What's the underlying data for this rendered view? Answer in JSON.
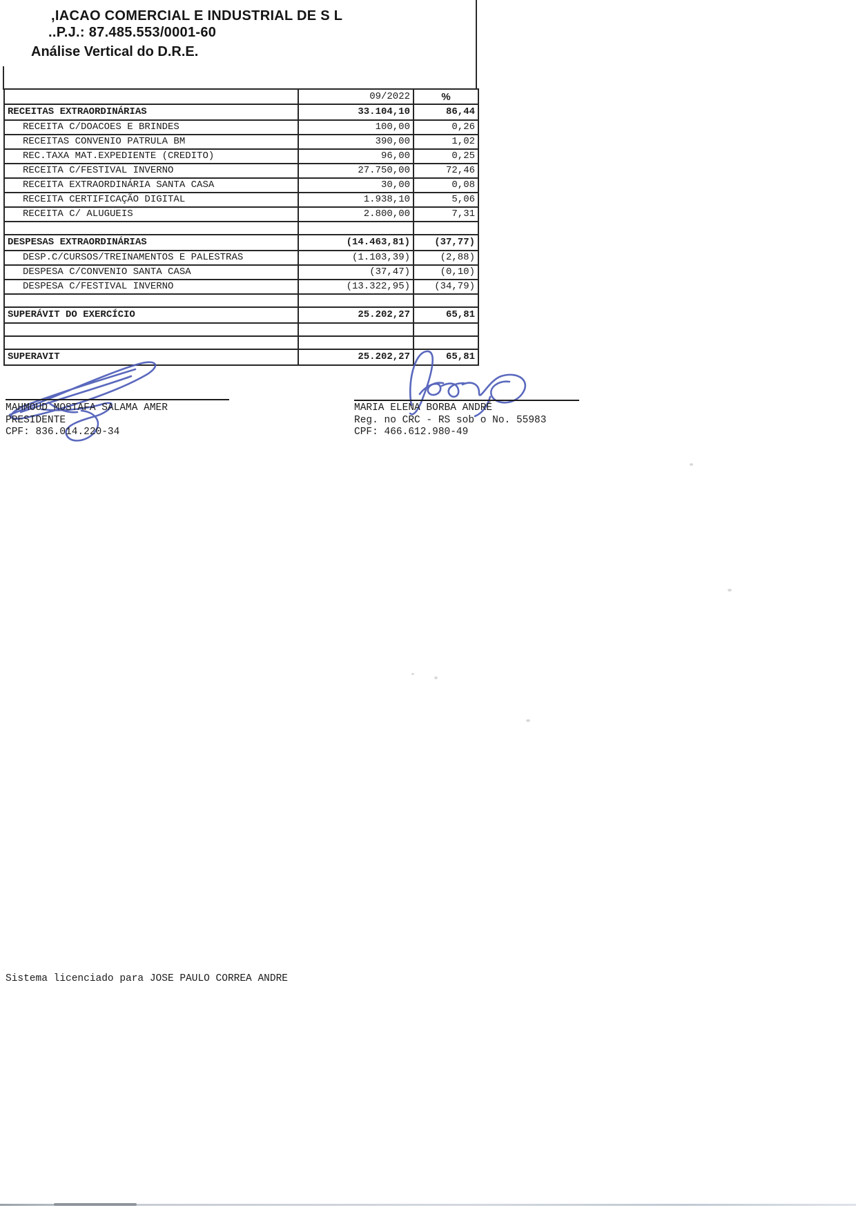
{
  "header": {
    "company_partial": ",IACAO COMERCIAL E INDUSTRIAL DE S L",
    "cnpj_partial": "..P.J.: 87.485.553/0001-60",
    "report_title": "Análise Vertical do D.R.E."
  },
  "table": {
    "columns": [
      "",
      "09/2022",
      "%"
    ],
    "rows": [
      {
        "label": "RECEITAS EXTRAORDINÁRIAS",
        "value": "33.104,10",
        "pct": "86,44",
        "style": "total"
      },
      {
        "label": "RECEITA C/DOACOES E BRINDES",
        "value": "100,00",
        "pct": "0,26",
        "style": "detail"
      },
      {
        "label": "RECEITAS CONVENIO PATRULA BM",
        "value": "390,00",
        "pct": "1,02",
        "style": "detail"
      },
      {
        "label": "REC.TAXA MAT.EXPEDIENTE (CREDITO)",
        "value": "96,00",
        "pct": "0,25",
        "style": "detail"
      },
      {
        "label": "RECEITA C/FESTIVAL INVERNO",
        "value": "27.750,00",
        "pct": "72,46",
        "style": "detail"
      },
      {
        "label": "RECEITA EXTRAORDINÁRIA SANTA CASA",
        "value": "30,00",
        "pct": "0,08",
        "style": "detail"
      },
      {
        "label": "RECEITA CERTIFICAÇÃO DIGITAL",
        "value": "1.938,10",
        "pct": "5,06",
        "style": "detail"
      },
      {
        "label": "RECEITA C/ ALUGUEIS",
        "value": "2.800,00",
        "pct": "7,31",
        "style": "detail"
      },
      {
        "label": "",
        "value": "",
        "pct": "",
        "style": "spacer"
      },
      {
        "label": "DESPESAS EXTRAORDINÁRIAS",
        "value": "(14.463,81)",
        "pct": "(37,77)",
        "style": "total"
      },
      {
        "label": "DESP.C/CURSOS/TREINAMENTOS E PALESTRAS",
        "value": "(1.103,39)",
        "pct": "(2,88)",
        "style": "detail"
      },
      {
        "label": "DESPESA C/CONVENIO SANTA CASA",
        "value": "(37,47)",
        "pct": "(0,10)",
        "style": "detail"
      },
      {
        "label": "DESPESA C/FESTIVAL INVERNO",
        "value": "(13.322,95)",
        "pct": "(34,79)",
        "style": "detail"
      },
      {
        "label": "",
        "value": "",
        "pct": "",
        "style": "spacer"
      },
      {
        "label": "SUPERÁVIT DO EXERCÍCIO",
        "value": "25.202,27",
        "pct": "65,81",
        "style": "total"
      },
      {
        "label": "",
        "value": "",
        "pct": "",
        "style": "spacer"
      },
      {
        "label": "",
        "value": "",
        "pct": "",
        "style": "spacer"
      },
      {
        "label": "SUPERAVIT",
        "value": "25.202,27",
        "pct": "65,81",
        "style": "total"
      }
    ]
  },
  "signatures": {
    "left": {
      "name": "MAHMOUD MOSTAFA SALAMA AMER",
      "role": "PRESIDENTE",
      "cpf": "CPF: 836.014.220-34"
    },
    "right": {
      "name": "MARIA ELENA BORBA ANDRÉ",
      "reg": "Reg. no CRC - RS sob o No. 55983",
      "cpf": "CPF: 466.612.980-49"
    }
  },
  "footer": {
    "license": "Sistema licenciado para JOSE PAULO CORREA ANDRE"
  },
  "colors": {
    "ink": "#1b1b1b",
    "border": "#262626",
    "signature_blue": "#4d5cb8",
    "page_edge_gray": "#c6cbd2"
  }
}
